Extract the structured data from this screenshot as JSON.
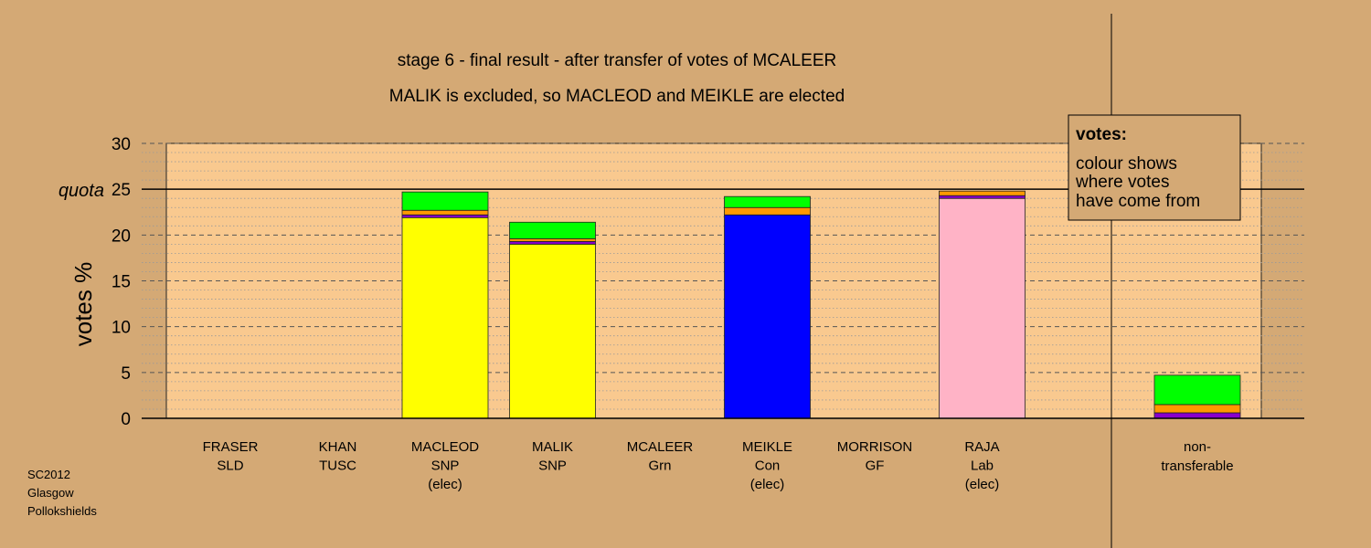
{
  "chart_data": {
    "type": "bar",
    "stacked": true,
    "title": "stage 6 - final result - after transfer of votes of MCALEER",
    "subtitle": "MALIK is excluded, so MACLEOD and MEIKLE are elected",
    "ylabel": "votes %",
    "ylim": [
      0,
      30
    ],
    "yticks": [
      0,
      5,
      10,
      15,
      20,
      25,
      30
    ],
    "quota": {
      "label": "quota",
      "value": 25
    },
    "colors": {
      "snp": "#ffff00",
      "con": "#0000ff",
      "lab": "#ffb3c6",
      "grn": "#00ff00",
      "orange": "#ff9900",
      "lab_transfer": "#ff3355",
      "purple": "#8800cc",
      "plot_bg": "#f9c98f",
      "page_bg": "#d4a975"
    },
    "categories": [
      {
        "name": "FRASER",
        "party": "SLD",
        "status": "",
        "segments": []
      },
      {
        "name": "KHAN",
        "party": "TUSC",
        "status": "",
        "segments": []
      },
      {
        "name": "MACLEOD",
        "party": "SNP",
        "status": "(elec)",
        "segments": [
          {
            "color": "snp",
            "value": 21.9
          },
          {
            "color": "purple",
            "value": 0.3
          },
          {
            "color": "orange",
            "value": 0.5
          },
          {
            "color": "grn",
            "value": 2.0
          }
        ]
      },
      {
        "name": "MALIK",
        "party": "SNP",
        "status": "",
        "segments": [
          {
            "color": "snp",
            "value": 19.0
          },
          {
            "color": "purple",
            "value": 0.3
          },
          {
            "color": "orange",
            "value": 0.3
          },
          {
            "color": "grn",
            "value": 1.8
          }
        ]
      },
      {
        "name": "MCALEER",
        "party": "Grn",
        "status": "",
        "segments": []
      },
      {
        "name": "MEIKLE",
        "party": "Con",
        "status": "(elec)",
        "segments": [
          {
            "color": "con",
            "value": 22.2
          },
          {
            "color": "orange",
            "value": 0.8
          },
          {
            "color": "grn",
            "value": 1.2
          }
        ]
      },
      {
        "name": "MORRISON",
        "party": "GF",
        "status": "",
        "segments": []
      },
      {
        "name": "RAJA",
        "party": "Lab",
        "status": "(elec)",
        "segments": [
          {
            "color": "lab",
            "value": 24.0
          },
          {
            "color": "purple",
            "value": 0.3
          },
          {
            "color": "orange",
            "value": 0.5
          }
        ]
      }
    ],
    "non_transferable": {
      "label_line1": "non-",
      "label_line2": "transferable",
      "segments": [
        {
          "color": "purple",
          "value": 0.6
        },
        {
          "color": "orange",
          "value": 0.9
        },
        {
          "color": "grn",
          "value": 3.2
        }
      ]
    },
    "legend": {
      "title": "votes:",
      "lines": [
        "colour shows",
        "where votes",
        "have come from"
      ]
    }
  },
  "credit": [
    "SC2012",
    "Glasgow",
    "Pollokshields"
  ]
}
